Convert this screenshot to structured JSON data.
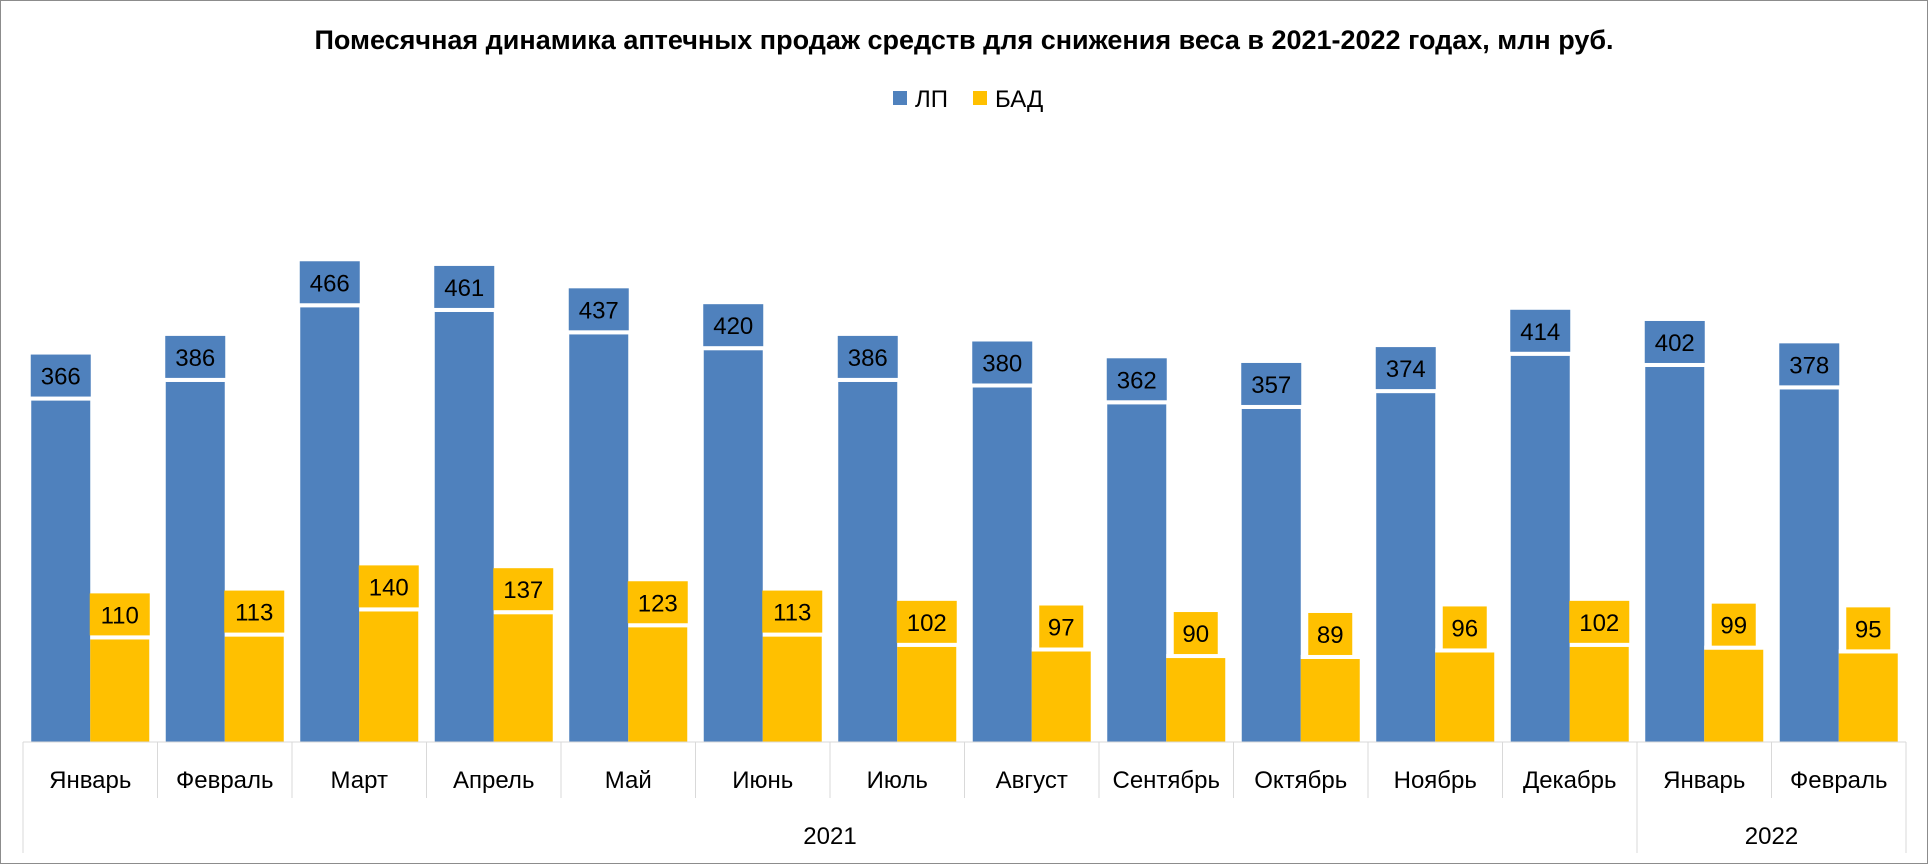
{
  "chart_data": {
    "type": "bar",
    "title": "Помесячная динамика аптечных продаж средств для снижения веса в 2021-2022 годах, млн руб.",
    "categories": [
      "Январь",
      "Февраль",
      "Март",
      "Апрель",
      "Май",
      "Июнь",
      "Июль",
      "Август",
      "Сентябрь",
      "Октябрь",
      "Ноябрь",
      "Декабрь",
      "Январь",
      "Февраль"
    ],
    "groups": [
      {
        "label": "2021",
        "count": 12
      },
      {
        "label": "2022",
        "count": 2
      }
    ],
    "series": [
      {
        "name": "ЛП",
        "color": "#4f81bd",
        "values": [
          366,
          386,
          466,
          461,
          437,
          420,
          386,
          380,
          362,
          357,
          374,
          414,
          402,
          378
        ]
      },
      {
        "name": "БАД",
        "color": "#ffc000",
        "values": [
          110,
          113,
          140,
          137,
          123,
          113,
          102,
          97,
          90,
          89,
          96,
          102,
          99,
          95
        ]
      }
    ],
    "data_labels": true,
    "legend_position": "top",
    "grid": false,
    "ylim": [
      0,
      500
    ],
    "xlabel": "",
    "ylabel": ""
  }
}
